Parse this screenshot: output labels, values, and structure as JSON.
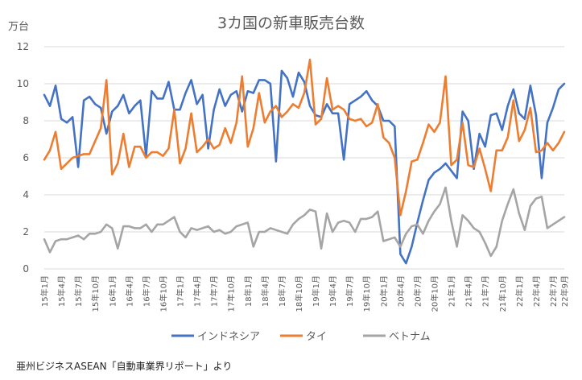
{
  "chart_data": {
    "type": "line",
    "title": "3カ国の新車販売台数",
    "ylabel": "万台",
    "source": "亜州ビジネスASEAN「自動車業界リポート」より",
    "ylim": [
      0,
      12
    ],
    "yticks": [
      0,
      2,
      4,
      6,
      8,
      10,
      12
    ],
    "grid": true,
    "legend_position": "bottom",
    "x_start": "2015-01",
    "x_end": "2022-09",
    "x_tick_labels": [
      "15年1月",
      "15年4月",
      "15年7月",
      "15年10月",
      "16年1月",
      "16年4月",
      "16年7月",
      "16年10月",
      "17年1月",
      "17年4月",
      "17年7月",
      "17年10月",
      "18年1月",
      "18年4月",
      "18年7月",
      "18年10月",
      "19年1月",
      "19年4月",
      "19年7月",
      "19年10月",
      "20年1月",
      "20年4月",
      "20年7月",
      "20年10月",
      "21年1月",
      "21年4月",
      "21年7月",
      "21年10月",
      "22年1月",
      "22年4月",
      "22年7月",
      "22年9月"
    ],
    "series": [
      {
        "name": "インドネシア",
        "color": "#4472C4",
        "values": [
          9.4,
          8.8,
          9.9,
          8.1,
          7.9,
          8.2,
          5.5,
          9.1,
          9.3,
          8.9,
          8.7,
          7.3,
          8.5,
          8.8,
          9.4,
          8.4,
          8.8,
          9.1,
          6.1,
          9.6,
          9.2,
          9.2,
          10.1,
          8.6,
          8.6,
          9.5,
          10.2,
          8.9,
          9.4,
          6.5,
          8.6,
          9.7,
          8.8,
          9.4,
          9.6,
          8.5,
          9.6,
          9.5,
          10.2,
          10.2,
          10.0,
          5.8,
          10.7,
          10.3,
          9.3,
          10.6,
          10.1,
          8.8,
          8.3,
          8.2,
          8.9,
          8.4,
          8.4,
          5.9,
          8.9,
          9.1,
          9.3,
          9.6,
          9.1,
          8.8,
          8.0,
          8.0,
          7.7,
          0.8,
          0.3,
          1.2,
          2.5,
          3.7,
          4.8,
          5.2,
          5.4,
          5.7,
          5.3,
          4.9,
          8.5,
          8.0,
          5.4,
          7.3,
          6.6,
          8.3,
          8.4,
          7.5,
          8.8,
          9.7,
          8.4,
          8.1,
          9.9,
          8.3,
          4.9,
          7.9,
          8.7,
          9.7,
          10.0
        ]
      },
      {
        "name": "タイ",
        "color": "#ED7D31",
        "values": [
          5.9,
          6.4,
          7.4,
          5.4,
          5.7,
          6.0,
          6.1,
          6.2,
          6.2,
          6.9,
          7.6,
          10.2,
          5.1,
          5.7,
          7.3,
          5.5,
          6.6,
          6.6,
          6.0,
          6.3,
          6.3,
          6.1,
          6.5,
          8.6,
          5.7,
          6.5,
          8.4,
          6.3,
          6.6,
          7.0,
          6.5,
          6.7,
          7.6,
          6.8,
          7.9,
          10.4,
          6.6,
          7.6,
          9.5,
          7.9,
          8.5,
          8.8,
          8.2,
          8.5,
          8.9,
          8.7,
          9.5,
          11.3,
          7.8,
          8.1,
          10.3,
          8.6,
          8.8,
          8.6,
          8.1,
          8.0,
          8.1,
          7.7,
          7.9,
          8.9,
          7.1,
          6.8,
          6.0,
          2.9,
          4.2,
          5.8,
          5.9,
          6.8,
          7.8,
          7.4,
          7.9,
          10.4,
          5.6,
          5.9,
          7.9,
          5.6,
          5.5,
          6.5,
          5.4,
          4.2,
          6.4,
          6.4,
          7.1,
          9.1,
          6.9,
          7.5,
          8.7,
          6.3,
          6.4,
          6.8,
          6.4,
          6.8,
          7.4
        ]
      },
      {
        "name": "ベトナム",
        "color": "#A5A5A5",
        "values": [
          1.6,
          0.9,
          1.5,
          1.6,
          1.6,
          1.7,
          1.8,
          1.6,
          1.9,
          1.9,
          2.0,
          2.4,
          2.2,
          1.1,
          2.3,
          2.3,
          2.2,
          2.2,
          2.4,
          2.0,
          2.4,
          2.4,
          2.6,
          2.8,
          2.0,
          1.7,
          2.2,
          2.1,
          2.2,
          2.3,
          2.0,
          2.1,
          1.9,
          2.0,
          2.3,
          2.4,
          2.5,
          1.2,
          2.0,
          2.0,
          2.2,
          2.1,
          2.0,
          1.9,
          2.4,
          2.7,
          2.9,
          3.2,
          3.1,
          1.1,
          3.0,
          2.0,
          2.5,
          2.6,
          2.5,
          2.0,
          2.7,
          2.7,
          2.8,
          3.1,
          1.5,
          1.6,
          1.7,
          1.2,
          1.9,
          2.3,
          2.4,
          1.9,
          2.6,
          3.1,
          3.5,
          4.4,
          2.6,
          1.2,
          2.9,
          2.6,
          2.2,
          2.0,
          1.4,
          0.7,
          1.2,
          2.6,
          3.5,
          4.3,
          3.0,
          2.1,
          3.4,
          3.8,
          3.9,
          2.2,
          2.4,
          2.6,
          2.8
        ]
      }
    ]
  }
}
